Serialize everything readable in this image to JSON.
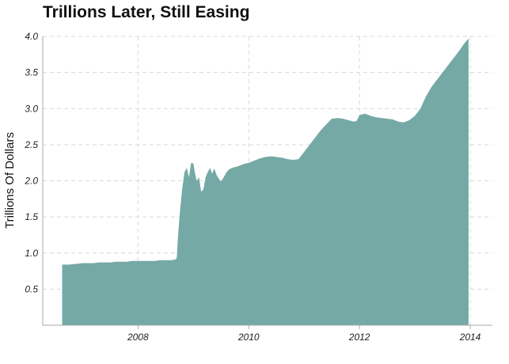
{
  "colors": {
    "area": "#75a9a6",
    "grid": "#d9d9d9",
    "axis": "#aaaaaa",
    "text": "#222222"
  },
  "chart_data": {
    "type": "area",
    "title": "Trillions Later, Still Easing",
    "xlabel": "",
    "ylabel": "Trillions Of Dollars",
    "xlim": [
      2006.28,
      2014.4
    ],
    "ylim": [
      0,
      4.0
    ],
    "x_ticks": [
      2008,
      2010,
      2012,
      2014
    ],
    "x_tick_labels": [
      "2008",
      "2010",
      "2012",
      "2014"
    ],
    "y_ticks": [
      0.5,
      1.0,
      1.5,
      2.0,
      2.5,
      3.0,
      3.5,
      4.0
    ],
    "y_tick_labels": [
      "0.5",
      "1.0",
      "1.5",
      "2.0",
      "2.5",
      "3.0",
      "3.5",
      "4.0"
    ],
    "grid": true,
    "legend": "none",
    "series": [
      {
        "x": [
          2006.63,
          2006.75,
          2006.9,
          2007.0,
          2007.1,
          2007.2,
          2007.3,
          2007.4,
          2007.5,
          2007.6,
          2007.7,
          2007.8,
          2007.9,
          2008.0,
          2008.1,
          2008.2,
          2008.3,
          2008.4,
          2008.5,
          2008.6,
          2008.67,
          2008.7,
          2008.72,
          2008.76,
          2008.8,
          2008.84,
          2008.88,
          2008.92,
          2008.96,
          2009.0,
          2009.03,
          2009.06,
          2009.1,
          2009.14,
          2009.18,
          2009.22,
          2009.26,
          2009.3,
          2009.34,
          2009.38,
          2009.42,
          2009.46,
          2009.5,
          2009.55,
          2009.6,
          2009.65,
          2009.7,
          2009.8,
          2009.9,
          2010.0,
          2010.1,
          2010.2,
          2010.3,
          2010.4,
          2010.5,
          2010.6,
          2010.7,
          2010.8,
          2010.9,
          2011.0,
          2011.1,
          2011.2,
          2011.3,
          2011.4,
          2011.5,
          2011.6,
          2011.7,
          2011.8,
          2011.9,
          2011.95,
          2012.0,
          2012.1,
          2012.2,
          2012.3,
          2012.4,
          2012.5,
          2012.6,
          2012.7,
          2012.8,
          2012.9,
          2013.0,
          2013.1,
          2013.2,
          2013.3,
          2013.4,
          2013.5,
          2013.6,
          2013.7,
          2013.8,
          2013.9,
          2013.97
        ],
        "values": [
          0.84,
          0.84,
          0.85,
          0.86,
          0.86,
          0.86,
          0.87,
          0.87,
          0.87,
          0.88,
          0.88,
          0.88,
          0.89,
          0.89,
          0.89,
          0.89,
          0.89,
          0.9,
          0.9,
          0.9,
          0.91,
          0.93,
          1.2,
          1.6,
          1.9,
          2.12,
          2.18,
          2.05,
          2.25,
          2.24,
          2.1,
          2.0,
          2.05,
          1.85,
          1.88,
          2.05,
          2.12,
          2.18,
          2.1,
          2.17,
          2.08,
          2.03,
          1.99,
          2.05,
          2.12,
          2.16,
          2.18,
          2.2,
          2.23,
          2.25,
          2.28,
          2.31,
          2.33,
          2.34,
          2.33,
          2.32,
          2.3,
          2.29,
          2.3,
          2.4,
          2.5,
          2.6,
          2.7,
          2.78,
          2.86,
          2.87,
          2.86,
          2.84,
          2.82,
          2.83,
          2.91,
          2.93,
          2.9,
          2.88,
          2.87,
          2.86,
          2.85,
          2.82,
          2.81,
          2.84,
          2.9,
          3.0,
          3.17,
          3.3,
          3.4,
          3.5,
          3.6,
          3.7,
          3.8,
          3.91,
          3.97
        ]
      }
    ]
  }
}
